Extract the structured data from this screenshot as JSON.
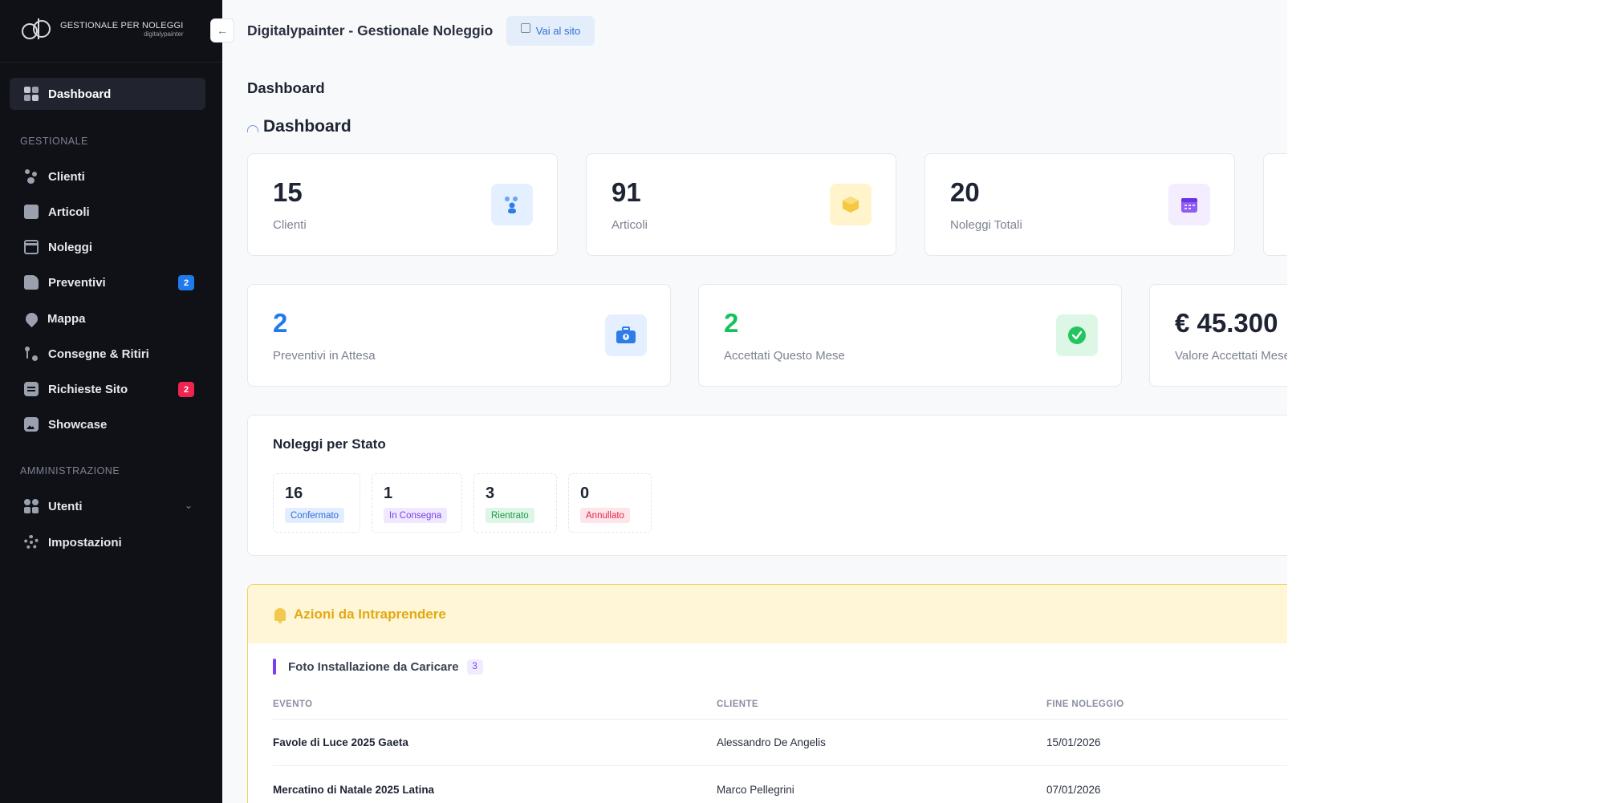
{
  "sidebar": {
    "logo": {
      "title": "GESTIONALE PER NOLEGGI",
      "subtitle": "digitalypainter"
    },
    "items": [
      {
        "label": "Dashboard",
        "icon": "dashboard-grid-icon",
        "active": true
      },
      {
        "label": "Clienti",
        "icon": "users-icon"
      },
      {
        "label": "Articoli",
        "icon": "box-icon"
      },
      {
        "label": "Noleggi",
        "icon": "calendar-icon"
      },
      {
        "label": "Preventivi",
        "icon": "document-icon",
        "badge": "2",
        "badge_color": "#1f7aec"
      },
      {
        "label": "Mappa",
        "icon": "map-pin-icon"
      },
      {
        "label": "Consegne & Ritiri",
        "icon": "route-icon"
      },
      {
        "label": "Richieste Sito",
        "icon": "chat-icon",
        "badge": "2",
        "badge_color": "#f0244f"
      },
      {
        "label": "Showcase",
        "icon": "image-icon"
      },
      {
        "label": "Utenti",
        "icon": "users-group-icon",
        "has_submenu": true
      },
      {
        "label": "Impostazioni",
        "icon": "gear-icon"
      }
    ],
    "sections": {
      "gestionale": "GESTIONALE",
      "amministrazione": "AMMINISTRAZIONE"
    }
  },
  "topbar": {
    "title": "Digitalypainter - Gestionale Noleggio",
    "site_button": "Vai al sito"
  },
  "breadcrumb": "Dashboard",
  "page_title": "Dashboard",
  "stats_row1": [
    {
      "value": "15",
      "label": "Clienti",
      "icon": "users-icon",
      "icon_bg": "#e4efff"
    },
    {
      "value": "91",
      "label": "Articoli",
      "icon": "box-icon",
      "icon_bg": "#fff4cc"
    },
    {
      "value": "20",
      "label": "Noleggi Totali",
      "icon": "calendar-icon",
      "icon_bg": "#f3edff"
    }
  ],
  "stats_row2": [
    {
      "value": "2",
      "label": "Preventivi in Attesa",
      "value_color": "#1f7aec",
      "icon": "briefcase-icon",
      "icon_bg": "#e4efff"
    },
    {
      "value": "2",
      "label": "Accettati Questo Mese",
      "value_color": "#17c25a",
      "icon": "check-circle-icon",
      "icon_bg": "#dcf7e6"
    },
    {
      "value": "€ 45.300",
      "label": "Valore Accettati Mese",
      "value_color": "#1e2433"
    }
  ],
  "rentals_by_status": {
    "title": "Noleggi per Stato",
    "items": [
      {
        "count": "16",
        "label": "Confermato",
        "bg": "#e2eeff",
        "fg": "#2f6fd6"
      },
      {
        "count": "1",
        "label": "In Consegna",
        "bg": "#efe8ff",
        "fg": "#7a3ff0"
      },
      {
        "count": "3",
        "label": "Rientrato",
        "bg": "#ddf6e6",
        "fg": "#1d9a4c"
      },
      {
        "count": "0",
        "label": "Annullato",
        "bg": "#ffe4ea",
        "fg": "#e0284f"
      }
    ]
  },
  "actions": {
    "title": "Azioni da Intraprendere",
    "subsection": {
      "title": "Foto Installazione da Caricare",
      "count": "3"
    },
    "columns": [
      "EVENTO",
      "CLIENTE",
      "FINE NOLEGGIO"
    ],
    "rows": [
      {
        "evento": "Favole di Luce 2025 Gaeta",
        "cliente": "Alessandro De Angelis",
        "fine": "15/01/2026"
      },
      {
        "evento": "Mercatino di Natale 2025 Latina",
        "cliente": "Marco Pellegrini",
        "fine": "07/01/2026"
      }
    ]
  }
}
